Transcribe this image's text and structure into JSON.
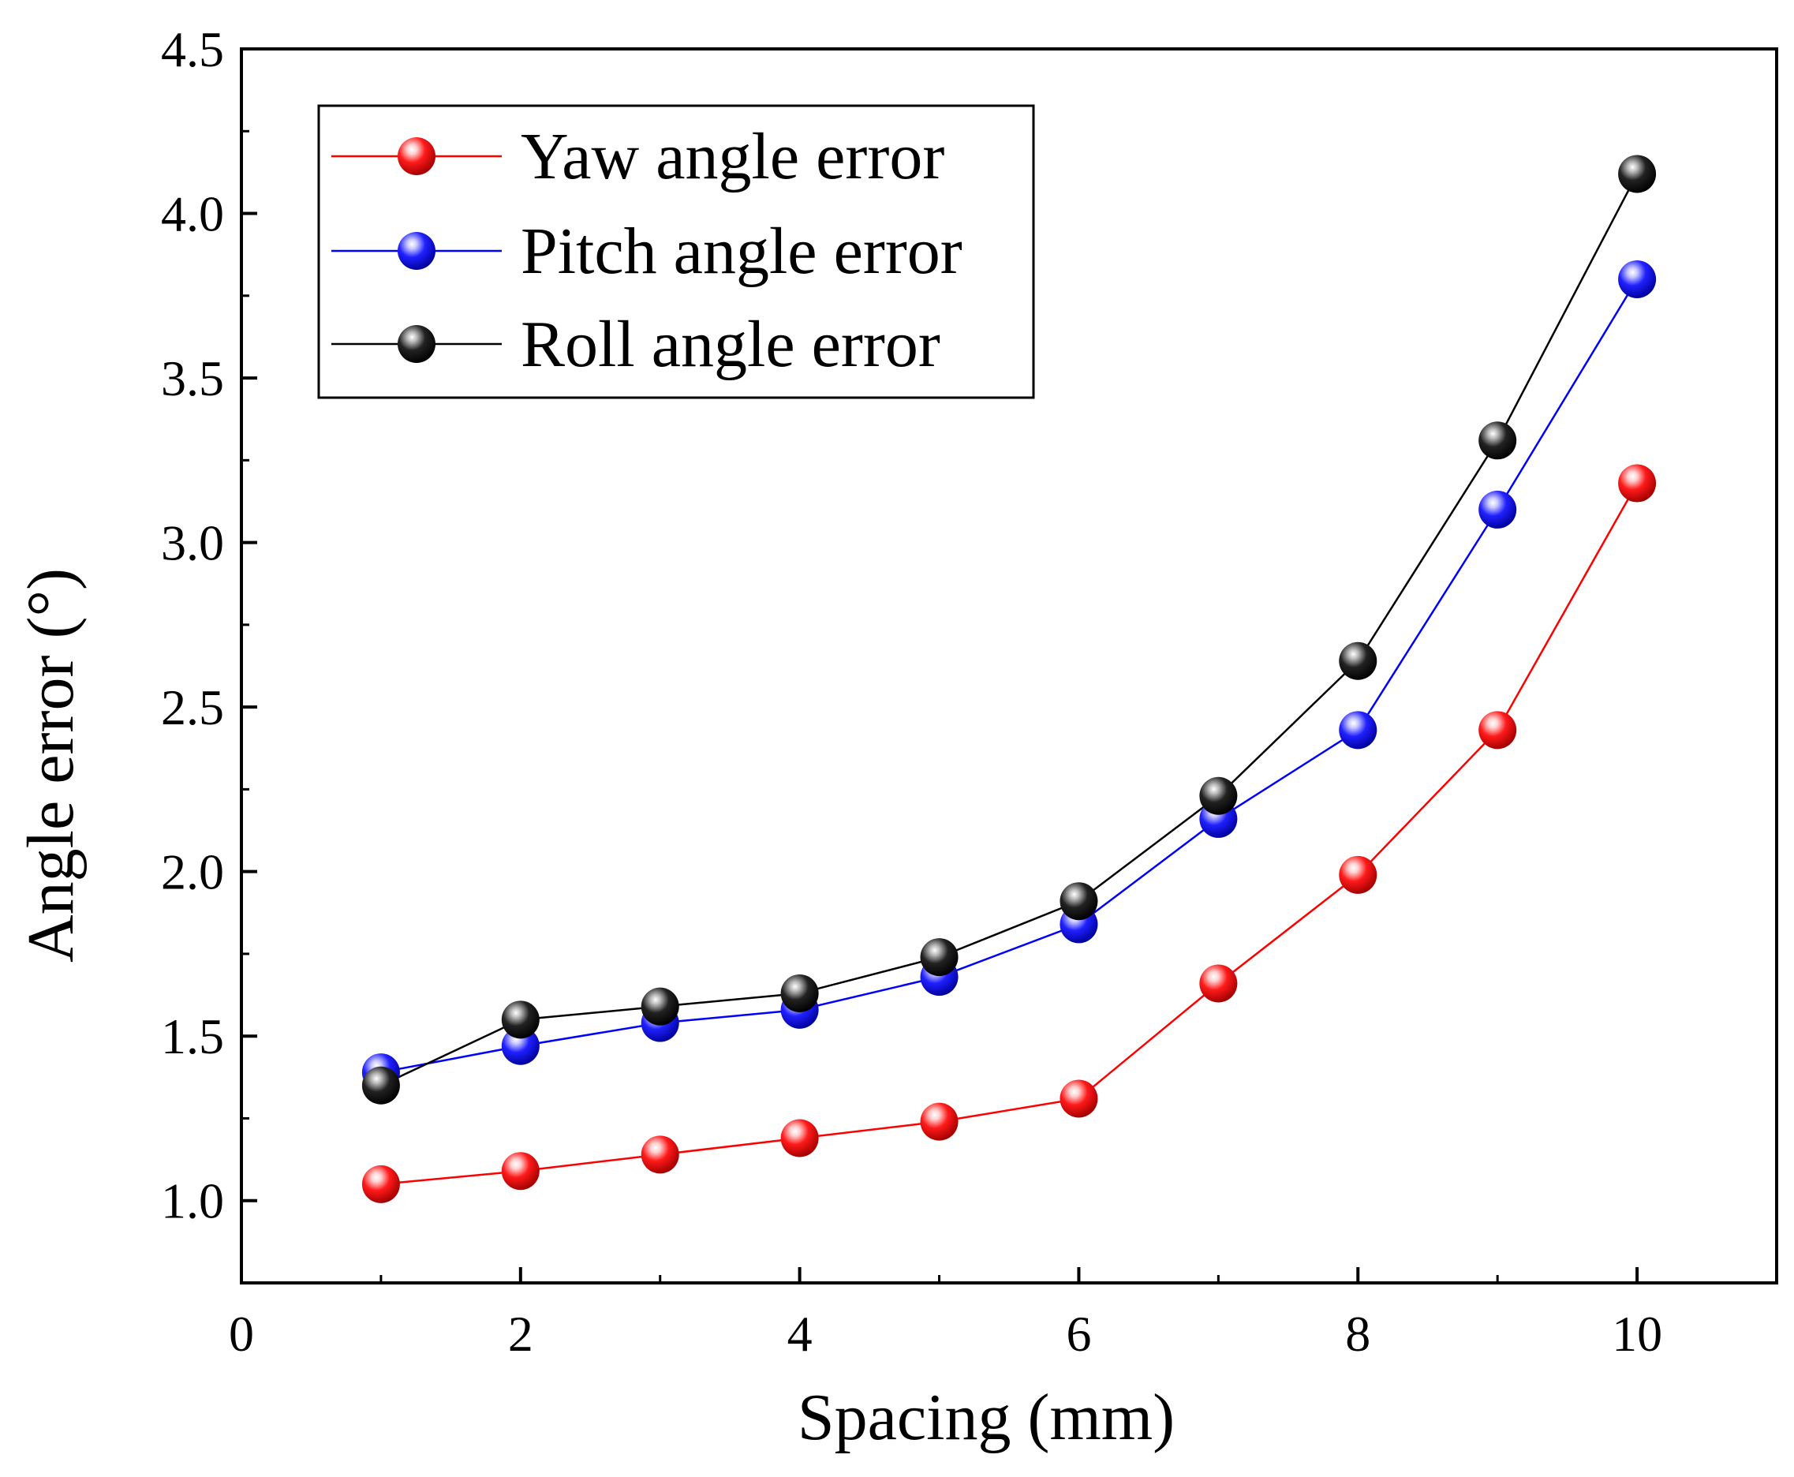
{
  "chart_data": {
    "type": "line",
    "title": "",
    "xlabel": "Spacing (mm)",
    "ylabel": "Angle error (°)",
    "xlim": [
      0,
      11
    ],
    "ylim": [
      0.75,
      4.5
    ],
    "x_ticks": [
      0,
      2,
      4,
      6,
      8,
      10
    ],
    "y_ticks": [
      1.0,
      1.5,
      2.0,
      2.5,
      3.0,
      3.5,
      4.0,
      4.5
    ],
    "y_tick_labels": [
      "1.0",
      "1.5",
      "2.0",
      "2.5",
      "3.0",
      "3.5",
      "4.0",
      "4.5"
    ],
    "x_tick_labels": [
      "0",
      "2",
      "4",
      "6",
      "8",
      "10"
    ],
    "grid": false,
    "legend_position": "top-left",
    "x": [
      1,
      2,
      3,
      4,
      5,
      6,
      7,
      8,
      9,
      10
    ],
    "series": [
      {
        "name": "Yaw angle error",
        "color": "#ff0000",
        "values": [
          1.05,
          1.09,
          1.14,
          1.19,
          1.24,
          1.31,
          1.66,
          1.99,
          2.43,
          3.18
        ]
      },
      {
        "name": "Pitch angle error",
        "color": "#0000ff",
        "values": [
          1.39,
          1.47,
          1.54,
          1.58,
          1.68,
          1.84,
          2.16,
          2.43,
          3.1,
          3.8
        ]
      },
      {
        "name": "Roll angle error",
        "color": "#000000",
        "values": [
          1.35,
          1.55,
          1.59,
          1.63,
          1.74,
          1.91,
          2.23,
          2.64,
          3.31,
          4.12
        ]
      }
    ]
  }
}
